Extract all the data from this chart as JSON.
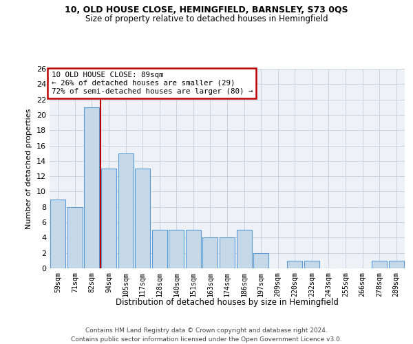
{
  "title1": "10, OLD HOUSE CLOSE, HEMINGFIELD, BARNSLEY, S73 0QS",
  "title2": "Size of property relative to detached houses in Hemingfield",
  "xlabel": "Distribution of detached houses by size in Hemingfield",
  "ylabel": "Number of detached properties",
  "categories": [
    "59sqm",
    "71sqm",
    "82sqm",
    "94sqm",
    "105sqm",
    "117sqm",
    "128sqm",
    "140sqm",
    "151sqm",
    "163sqm",
    "174sqm",
    "186sqm",
    "197sqm",
    "209sqm",
    "220sqm",
    "232sqm",
    "243sqm",
    "255sqm",
    "266sqm",
    "278sqm",
    "289sqm"
  ],
  "values": [
    9,
    8,
    21,
    13,
    15,
    13,
    5,
    5,
    5,
    4,
    4,
    5,
    2,
    0,
    1,
    1,
    0,
    0,
    0,
    1,
    1
  ],
  "bar_color": "#c5d8e8",
  "bar_edge_color": "#5b9bd5",
  "highlight_color": "#c00000",
  "annotation_text": "10 OLD HOUSE CLOSE: 89sqm\n← 26% of detached houses are smaller (29)\n72% of semi-detached houses are larger (80) →",
  "annotation_box_color": "white",
  "annotation_box_edge": "#c00000",
  "vline_x_index": 2,
  "ylim": [
    0,
    26
  ],
  "yticks": [
    0,
    2,
    4,
    6,
    8,
    10,
    12,
    14,
    16,
    18,
    20,
    22,
    24,
    26
  ],
  "footer1": "Contains HM Land Registry data © Crown copyright and database right 2024.",
  "footer2": "Contains public sector information licensed under the Open Government Licence v3.0.",
  "background_color": "#eef2f7",
  "grid_color": "#c8d4e0"
}
